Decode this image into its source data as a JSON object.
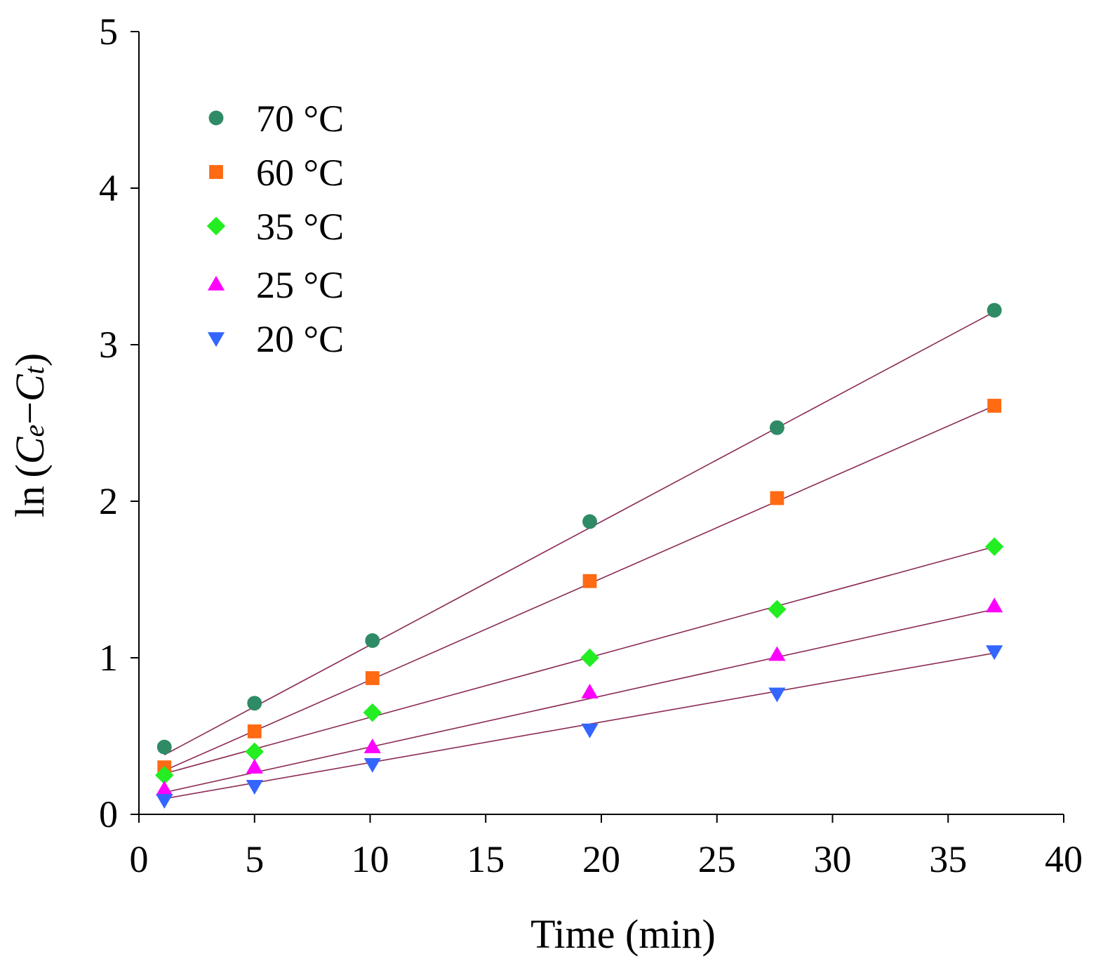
{
  "chart_data": {
    "type": "scatter",
    "xlabel": "Time (min)",
    "ylabel": "ln(Ce−Ct)",
    "ylabel_parts": {
      "prefix": "ln (",
      "c1": "C",
      "e": "e",
      "dash": "−",
      "c2": "C",
      "t": "t",
      "suffix": ")"
    },
    "xlim": [
      0,
      40
    ],
    "ylim": [
      0,
      5
    ],
    "x_ticks": [
      "0",
      "5",
      "10",
      "15",
      "20",
      "25",
      "30",
      "35",
      "40"
    ],
    "y_ticks": [
      "0",
      "1",
      "2",
      "3",
      "4",
      "5"
    ],
    "grid": false,
    "legend_position": "top-left",
    "fit_line_color": "#8a2a55",
    "x": [
      1.1,
      5.0,
      10.1,
      19.5,
      27.6,
      37.0
    ],
    "series": [
      {
        "name": "70 °C",
        "marker": "circle",
        "color": "#2e8b66",
        "values": [
          0.43,
          0.71,
          1.11,
          1.87,
          2.47,
          3.22
        ],
        "fit": [
          0.38,
          3.21
        ]
      },
      {
        "name": "60 °C",
        "marker": "square",
        "color": "#ff6a13",
        "values": [
          0.3,
          0.53,
          0.87,
          1.49,
          2.02,
          2.61
        ],
        "fit": [
          0.28,
          2.61
        ]
      },
      {
        "name": "35 °C",
        "marker": "diamond",
        "color": "#22ee22",
        "values": [
          0.25,
          0.4,
          0.65,
          1.0,
          1.31,
          1.71
        ],
        "fit": [
          0.26,
          1.71
        ]
      },
      {
        "name": "25 °C",
        "marker": "triangle-up",
        "color": "#ff00ff",
        "values": [
          0.16,
          0.3,
          0.43,
          0.78,
          1.02,
          1.33
        ],
        "fit": [
          0.14,
          1.31
        ]
      },
      {
        "name": "20 °C",
        "marker": "triangle-down",
        "color": "#3366ff",
        "values": [
          0.09,
          0.18,
          0.32,
          0.54,
          0.77,
          1.04
        ],
        "fit": [
          0.1,
          1.03
        ]
      }
    ]
  }
}
